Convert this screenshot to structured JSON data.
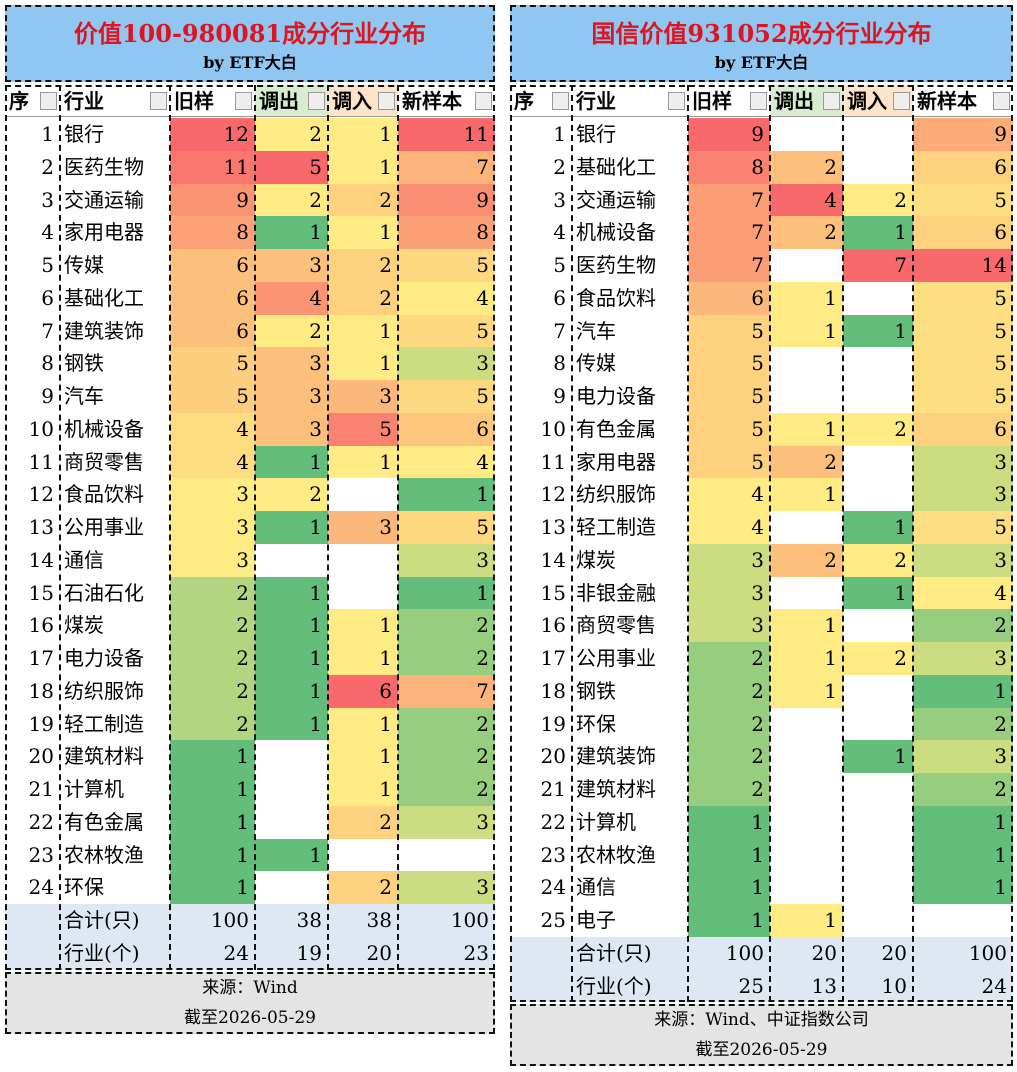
{
  "tables": [
    {
      "title": "价值100-980081成分行业分布",
      "subtitle": "by ETF大白",
      "headers": [
        "序",
        "行业",
        "旧样",
        "调出",
        "调入",
        "新样本"
      ],
      "rows": [
        [
          1,
          "银行",
          12,
          2,
          1,
          11
        ],
        [
          2,
          "医药生物",
          11,
          5,
          1,
          7
        ],
        [
          3,
          "交通运输",
          9,
          2,
          2,
          9
        ],
        [
          4,
          "家用电器",
          8,
          1,
          1,
          8
        ],
        [
          5,
          "传媒",
          6,
          3,
          2,
          5
        ],
        [
          6,
          "基础化工",
          6,
          4,
          2,
          4
        ],
        [
          7,
          "建筑装饰",
          6,
          2,
          1,
          5
        ],
        [
          8,
          "钢铁",
          5,
          3,
          1,
          3
        ],
        [
          9,
          "汽车",
          5,
          3,
          3,
          5
        ],
        [
          10,
          "机械设备",
          4,
          3,
          5,
          6
        ],
        [
          11,
          "商贸零售",
          4,
          1,
          1,
          4
        ],
        [
          12,
          "食品饮料",
          3,
          2,
          null,
          1
        ],
        [
          13,
          "公用事业",
          3,
          1,
          3,
          5
        ],
        [
          14,
          "通信",
          3,
          null,
          null,
          3
        ],
        [
          15,
          "石油石化",
          2,
          1,
          null,
          1
        ],
        [
          16,
          "煤炭",
          2,
          1,
          1,
          2
        ],
        [
          17,
          "电力设备",
          2,
          1,
          1,
          2
        ],
        [
          18,
          "纺织服饰",
          2,
          1,
          6,
          7
        ],
        [
          19,
          "轻工制造",
          2,
          1,
          1,
          2
        ],
        [
          20,
          "建筑材料",
          1,
          null,
          1,
          2
        ],
        [
          21,
          "计算机",
          1,
          null,
          1,
          2
        ],
        [
          22,
          "有色金属",
          1,
          null,
          2,
          3
        ],
        [
          23,
          "农林牧渔",
          1,
          1,
          null,
          null
        ],
        [
          24,
          "环保",
          1,
          null,
          2,
          3
        ]
      ],
      "totals": [
        [
          "合计(只)",
          100,
          38,
          38,
          100
        ],
        [
          "行业(个)",
          24,
          19,
          20,
          23
        ]
      ],
      "source": [
        "来源：Wind",
        "截至2026-05-29"
      ]
    },
    {
      "title": "国信价值931052成分行业分布",
      "subtitle": "by ETF大白",
      "headers": [
        "序",
        "行业",
        "旧样",
        "调出",
        "调入",
        "新样本"
      ],
      "rows": [
        [
          1,
          "银行",
          9,
          null,
          null,
          9
        ],
        [
          2,
          "基础化工",
          8,
          2,
          null,
          6
        ],
        [
          3,
          "交通运输",
          7,
          4,
          2,
          5
        ],
        [
          4,
          "机械设备",
          7,
          2,
          1,
          6
        ],
        [
          5,
          "医药生物",
          7,
          null,
          7,
          14
        ],
        [
          6,
          "食品饮料",
          6,
          1,
          null,
          5
        ],
        [
          7,
          "汽车",
          5,
          1,
          1,
          5
        ],
        [
          8,
          "传媒",
          5,
          null,
          null,
          5
        ],
        [
          9,
          "电力设备",
          5,
          null,
          null,
          5
        ],
        [
          10,
          "有色金属",
          5,
          1,
          2,
          6
        ],
        [
          11,
          "家用电器",
          5,
          2,
          null,
          3
        ],
        [
          12,
          "纺织服饰",
          4,
          1,
          null,
          3
        ],
        [
          13,
          "轻工制造",
          4,
          null,
          1,
          5
        ],
        [
          14,
          "煤炭",
          3,
          2,
          2,
          3
        ],
        [
          15,
          "非银金融",
          3,
          null,
          1,
          4
        ],
        [
          16,
          "商贸零售",
          3,
          1,
          null,
          2
        ],
        [
          17,
          "公用事业",
          2,
          1,
          2,
          3
        ],
        [
          18,
          "钢铁",
          2,
          1,
          null,
          1
        ],
        [
          19,
          "环保",
          2,
          null,
          null,
          2
        ],
        [
          20,
          "建筑装饰",
          2,
          null,
          1,
          3
        ],
        [
          21,
          "建筑材料",
          2,
          null,
          null,
          2
        ],
        [
          22,
          "计算机",
          1,
          null,
          null,
          1
        ],
        [
          23,
          "农林牧渔",
          1,
          null,
          null,
          1
        ],
        [
          24,
          "通信",
          1,
          null,
          null,
          1
        ],
        [
          25,
          "电子",
          1,
          1,
          null,
          null
        ]
      ],
      "totals": [
        [
          "合计(只)",
          100,
          20,
          20,
          100
        ],
        [
          "行业(个)",
          25,
          13,
          10,
          24
        ]
      ],
      "source": [
        "来源：Wind、中证指数公司",
        "截至2026-05-29"
      ]
    }
  ]
}
